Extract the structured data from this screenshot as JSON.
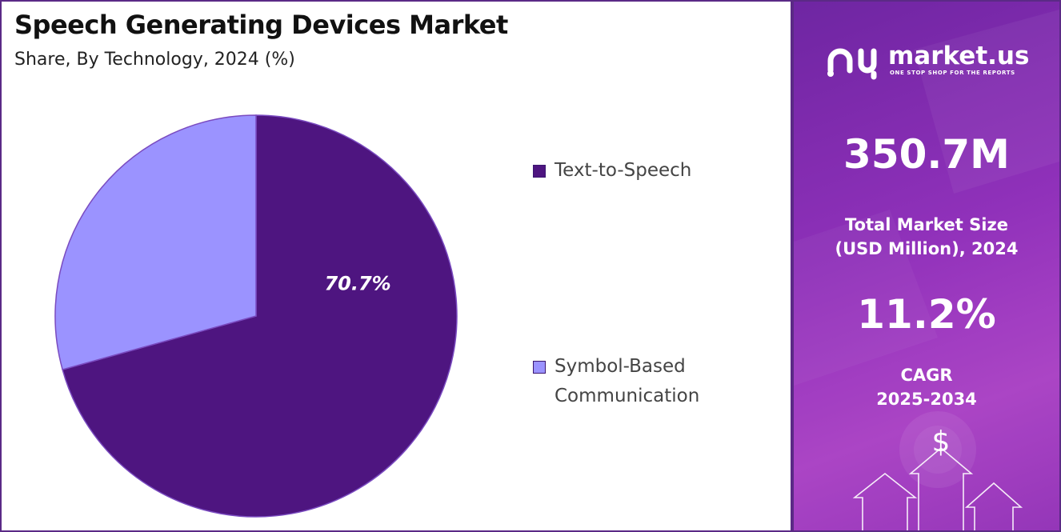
{
  "chart_data": {
    "type": "pie",
    "title": "Speech Generating Devices Market",
    "subtitle": "Share, By Technology, 2024 (%)",
    "categories": [
      "Text-to-Speech",
      "Symbol-Based Communication"
    ],
    "values": [
      70.7,
      29.3
    ],
    "colors": [
      "#4e1580",
      "#9b93ff"
    ],
    "data_labels": [
      "70.7%",
      ""
    ],
    "legend_position": "right",
    "legend": [
      {
        "lines": [
          "Text-to-Speech"
        ],
        "color": "#4e1580"
      },
      {
        "lines": [
          "Symbol-Based",
          "Communication"
        ],
        "color": "#9b93ff"
      }
    ]
  },
  "side_panel": {
    "brand": "market.us",
    "tagline": "ONE STOP SHOP FOR THE REPORTS",
    "market_size_value": "350.7M",
    "market_size_caption_line1": "Total Market Size",
    "market_size_caption_line2": "(USD Million), 2024",
    "cagr_value": "11.2%",
    "cagr_caption_line1": "CAGR",
    "cagr_caption_line2": "2025-2034",
    "currency_symbol": "$"
  },
  "colors": {
    "border": "#5b2a86",
    "panel_gradient_start": "#6a1fa0",
    "panel_gradient_end": "#a93fc4"
  }
}
